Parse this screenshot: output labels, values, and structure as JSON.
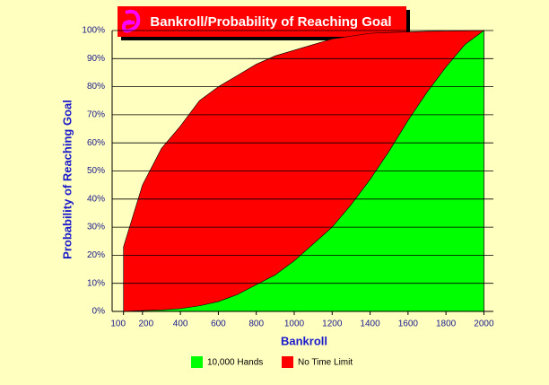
{
  "chart_data": {
    "type": "area",
    "title": "Bankroll/Probability of Reaching Goal",
    "x_label": "Bankroll",
    "y_label": "Probability of Reaching Goal",
    "x": [
      100,
      200,
      300,
      400,
      500,
      600,
      700,
      800,
      900,
      1000,
      1100,
      1200,
      1300,
      1400,
      1500,
      1600,
      1700,
      1800,
      1900,
      2000
    ],
    "series": [
      {
        "name": "No Time Limit",
        "color": "#ff0000",
        "values": [
          23,
          45,
          58,
          66,
          75,
          80,
          84,
          88,
          91,
          93,
          95,
          97,
          98,
          99,
          99.3,
          99.5,
          99.7,
          99.8,
          99.9,
          100
        ]
      },
      {
        "name": "10,000 Hands",
        "color": "#00ff00",
        "values": [
          0,
          0.3,
          0.5,
          1,
          2,
          3.5,
          6,
          9.5,
          13,
          18,
          24,
          30,
          38,
          47,
          57,
          68,
          78,
          87,
          95,
          100
        ]
      }
    ],
    "legend_order": [
      "10,000 Hands",
      "No Time Limit"
    ],
    "xlim": [
      40,
      2050
    ],
    "ylim": [
      0,
      100
    ],
    "xticks": [
      100,
      200,
      400,
      600,
      800,
      1000,
      1200,
      1400,
      1600,
      1800,
      2000
    ],
    "yticks": [
      {
        "value": 0,
        "label": "0%"
      },
      {
        "value": 10,
        "label": "10%"
      },
      {
        "value": 20,
        "label": "20%"
      },
      {
        "value": 30,
        "label": "30%"
      },
      {
        "value": 40,
        "label": "40%"
      },
      {
        "value": 50,
        "label": "50%"
      },
      {
        "value": 60,
        "label": "60%"
      },
      {
        "value": 70,
        "label": "70%"
      },
      {
        "value": 80,
        "label": "80%"
      },
      {
        "value": 90,
        "label": "90%"
      },
      {
        "value": 100,
        "label": "100%"
      }
    ],
    "grid": true,
    "legend_position": "bottom"
  }
}
